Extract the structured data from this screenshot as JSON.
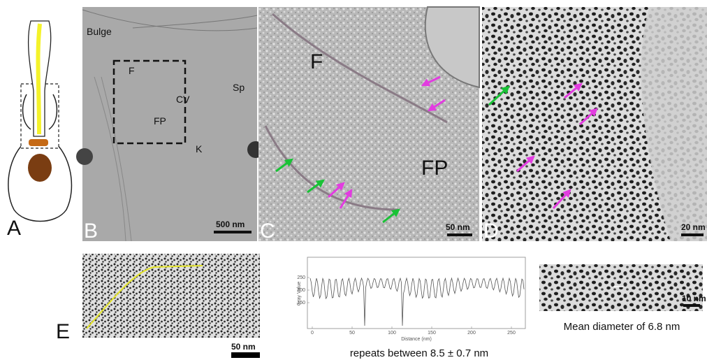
{
  "panel_labels": [
    "A",
    "B",
    "C",
    "D",
    "E"
  ],
  "panel_b": {
    "labels": [
      "Bulge",
      "F",
      "CV",
      "FP",
      "Sp",
      "K"
    ],
    "scale_bar": "500 nm"
  },
  "panel_c": {
    "labels": [
      "F",
      "FP"
    ],
    "scale_bar": "50 nm"
  },
  "panel_d": {
    "scale_bar": "20 nm"
  },
  "panel_e": {
    "scale_bar": "50 nm",
    "profile": {
      "y_label": "Gray Value",
      "x_label": "Distance (nm)",
      "yticks": [
        150,
        200,
        250
      ],
      "xticks": [
        0,
        50,
        100,
        150,
        200,
        250
      ]
    },
    "profile_caption": "repeats between 8.5 ± 0.7 nm",
    "inset_scale_bar": "10 nm",
    "inset_caption": "Mean diameter of 6.8 nm"
  }
}
